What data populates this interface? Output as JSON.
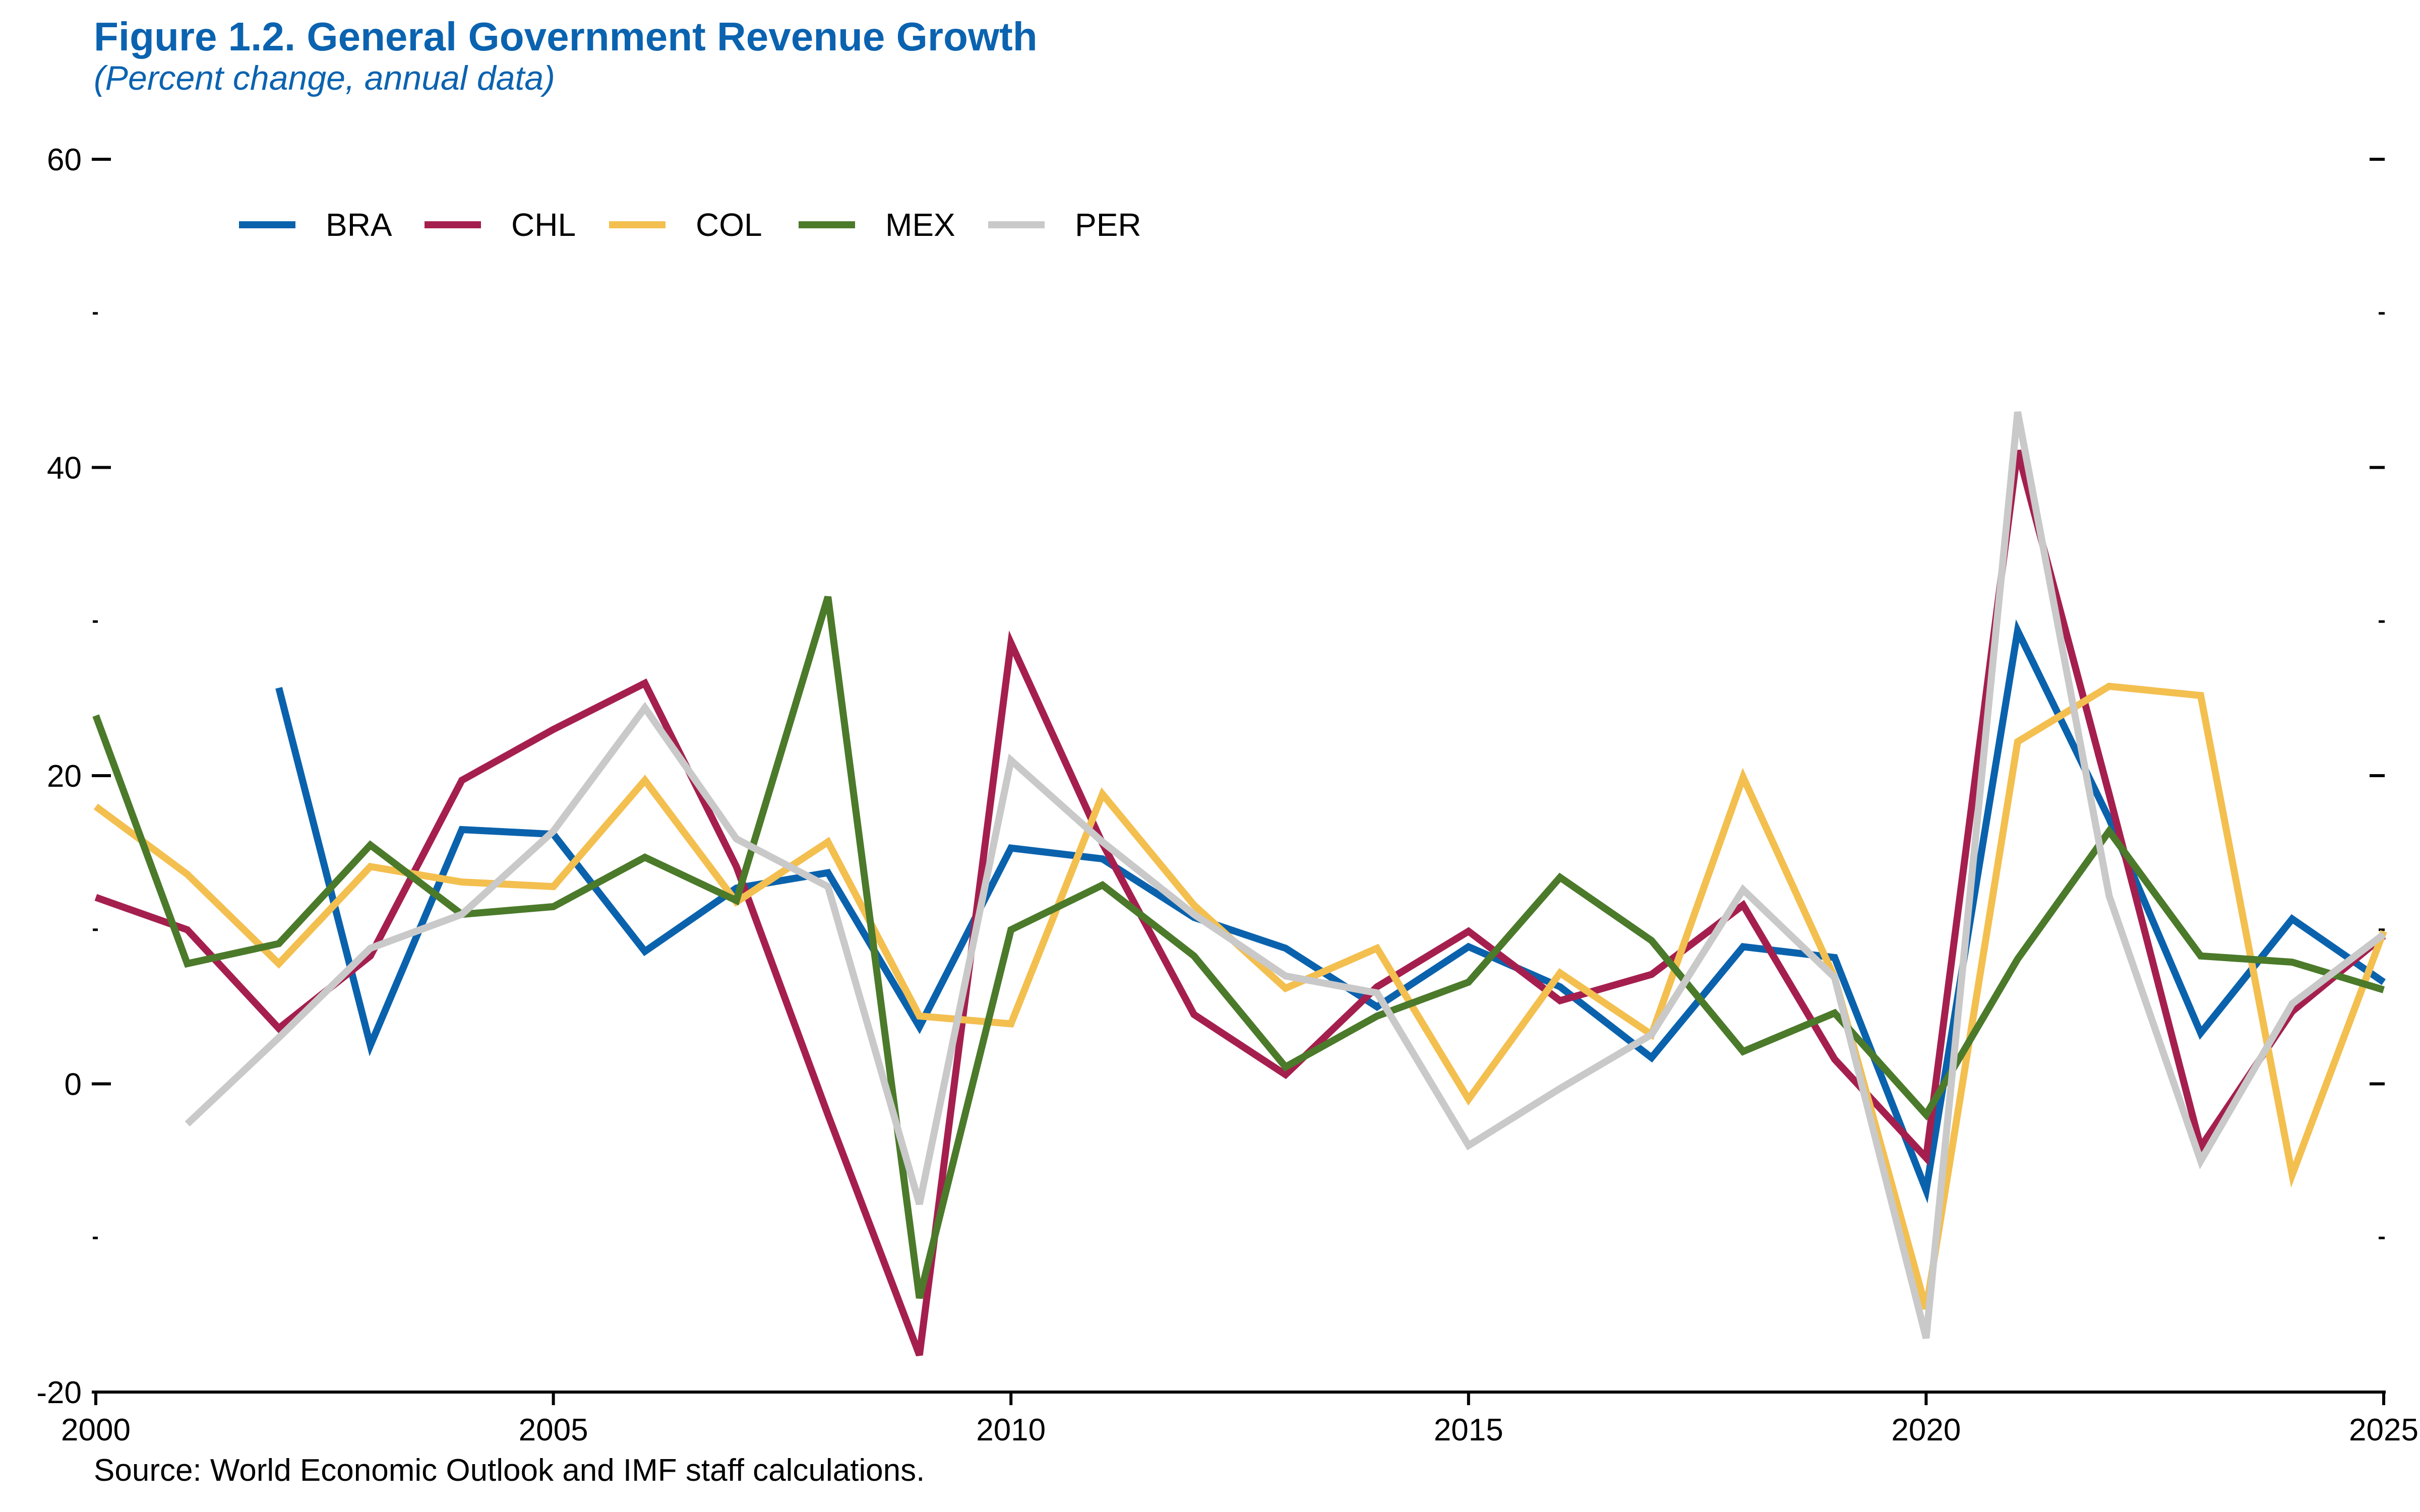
{
  "title": "Figure 1.2. General Government Revenue Growth",
  "subtitle": "(Percent change, annual data)",
  "source": "Source: World Economic Outlook and IMF staff calculations.",
  "chart_data": {
    "type": "line",
    "title": "Figure 1.2. General Government Revenue Growth",
    "subtitle": "(Percent change, annual data)",
    "xlabel": "",
    "ylabel": "",
    "xlim": [
      2000,
      2025
    ],
    "ylim": [
      -20,
      60
    ],
    "x_ticks": [
      2000,
      2005,
      2010,
      2015,
      2020,
      2025
    ],
    "y_ticks_labeled": [
      -20,
      0,
      20,
      40,
      60
    ],
    "y_ticks_minor": [
      -10,
      10,
      30,
      50
    ],
    "grid": false,
    "legend_position": "top-left",
    "x": [
      2000,
      2001,
      2002,
      2003,
      2004,
      2005,
      2006,
      2007,
      2008,
      2009,
      2010,
      2011,
      2012,
      2013,
      2014,
      2015,
      2016,
      2017,
      2018,
      2019,
      2020,
      2021,
      2022,
      2023,
      2024,
      2025
    ],
    "series": [
      {
        "name": "BRA",
        "color": "#0a62ad",
        "values": [
          null,
          null,
          25.7,
          2.5,
          16.5,
          16.2,
          8.6,
          12.7,
          13.7,
          3.7,
          15.3,
          14.6,
          10.8,
          8.8,
          5.0,
          8.9,
          6.3,
          1.7,
          8.9,
          8.2,
          -6.9,
          29.4,
          17.2,
          3.3,
          10.7,
          6.6
        ]
      },
      {
        "name": "CHL",
        "color": "#a51f4e",
        "values": [
          12.1,
          10.0,
          3.6,
          8.3,
          19.7,
          23.0,
          26.0,
          14.1,
          -2.0,
          -17.6,
          28.6,
          15.6,
          4.5,
          0.6,
          6.3,
          9.9,
          5.4,
          7.1,
          11.6,
          1.6,
          -4.8,
          41.1,
          18.8,
          -4.1,
          4.7,
          9.6
        ]
      },
      {
        "name": "COL",
        "color": "#f3bf4f",
        "values": [
          18.0,
          13.6,
          7.8,
          14.1,
          13.1,
          12.8,
          19.7,
          11.8,
          15.7,
          4.4,
          3.9,
          18.8,
          11.6,
          6.2,
          8.8,
          -1.0,
          7.2,
          3.2,
          19.9,
          6.9,
          -14.6,
          22.2,
          25.8,
          25.2,
          -5.9,
          9.9
        ]
      },
      {
        "name": "MEX",
        "color": "#4b7a2a",
        "values": [
          23.9,
          7.8,
          9.1,
          15.5,
          11.0,
          11.5,
          14.7,
          11.9,
          31.6,
          -13.9,
          10.0,
          12.9,
          8.3,
          1.1,
          4.4,
          6.6,
          13.4,
          9.3,
          2.1,
          4.6,
          -2.0,
          8.1,
          16.4,
          8.3,
          7.9,
          6.1
        ]
      },
      {
        "name": "PER",
        "color": "#c9c9c9",
        "values": [
          null,
          -2.6,
          3.0,
          8.8,
          11.0,
          16.4,
          24.4,
          15.9,
          12.8,
          -7.8,
          21.0,
          15.7,
          11.0,
          7.0,
          5.9,
          -4.0,
          -0.3,
          3.2,
          12.6,
          6.9,
          -16.5,
          43.6,
          12.2,
          -5.0,
          5.2,
          9.7
        ]
      }
    ]
  }
}
